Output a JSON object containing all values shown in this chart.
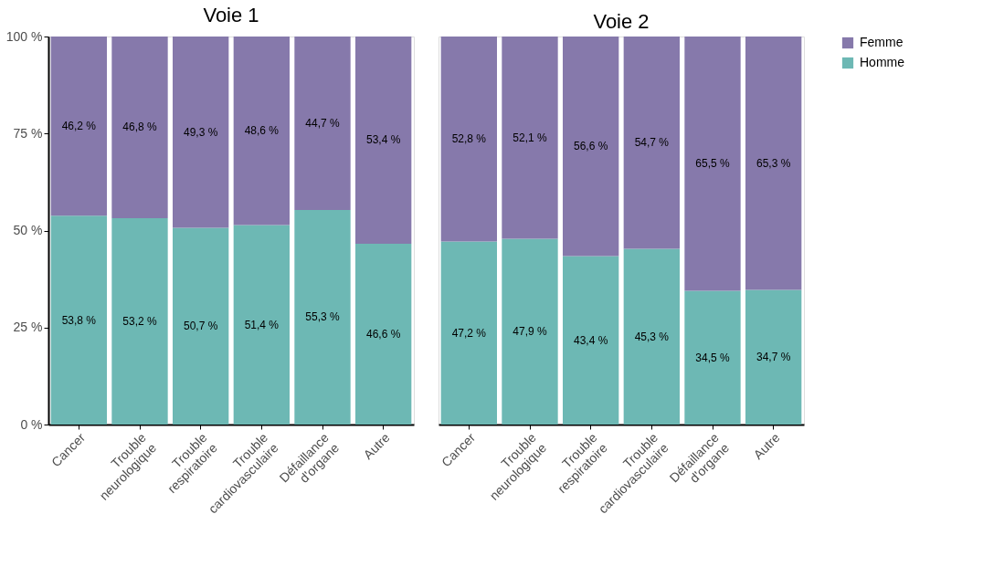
{
  "chart_data": [
    {
      "type": "bar",
      "stacked": true,
      "title": "Voie 1",
      "categories": [
        "Cancer",
        "Trouble neurologique",
        "Trouble respiratoire",
        "Trouble cardiovasculaire",
        "Défaillance d'organe",
        "Autre"
      ],
      "series": [
        {
          "name": "Homme",
          "color": "#6db8b4",
          "values": [
            53.8,
            53.2,
            50.7,
            51.4,
            55.3,
            46.6
          ],
          "value_labels": [
            "53,8 %",
            "53,2 %",
            "50,7 %",
            "51,4 %",
            "55,3 %",
            "46,6 %"
          ]
        },
        {
          "name": "Femme",
          "color": "#8679ab",
          "values": [
            46.2,
            46.8,
            49.3,
            48.6,
            44.7,
            53.4
          ],
          "value_labels": [
            "46,2 %",
            "46,8 %",
            "49,3 %",
            "48,6 %",
            "44,7 %",
            "53,4 %"
          ]
        }
      ],
      "ylim": [
        0,
        100
      ],
      "yticks": [
        {
          "value": 0,
          "label": "0 %"
        },
        {
          "value": 25,
          "label": "25 %"
        },
        {
          "value": 50,
          "label": "50 %"
        },
        {
          "value": 75,
          "label": "75 %"
        },
        {
          "value": 100,
          "label": "100 %"
        }
      ],
      "grid": false,
      "legend": "right"
    },
    {
      "type": "bar",
      "stacked": true,
      "title": "Voie 2",
      "categories": [
        "Cancer",
        "Trouble neurologique",
        "Trouble respiratoire",
        "Trouble cardiovasculaire",
        "Défaillance d'organe",
        "Autre"
      ],
      "series": [
        {
          "name": "Homme",
          "color": "#6db8b4",
          "values": [
            47.2,
            47.9,
            43.4,
            45.3,
            34.5,
            34.7
          ],
          "value_labels": [
            "47,2 %",
            "47,9 %",
            "43,4 %",
            "45,3 %",
            "34,5 %",
            "34,7 %"
          ]
        },
        {
          "name": "Femme",
          "color": "#8679ab",
          "values": [
            52.8,
            52.1,
            56.6,
            54.7,
            65.5,
            65.3
          ],
          "value_labels": [
            "52,8 %",
            "52,1 %",
            "56,6 %",
            "54,7 %",
            "65,5 %",
            "65,3 %"
          ]
        }
      ],
      "ylim": [
        0,
        100
      ],
      "grid": false,
      "tick_labels": "x",
      "legend": "right"
    }
  ]
}
